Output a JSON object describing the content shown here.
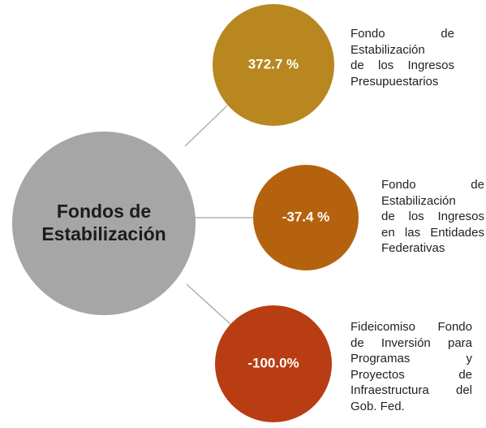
{
  "center": {
    "title_lines": [
      "Fondos de",
      "Estabilización"
    ]
  },
  "nodes": [
    {
      "label": "372.7 %",
      "color": "#b8871f",
      "description_lines": [
        "Fondo de",
        "Estabilización",
        "de los Ingresos",
        "Presupuestarios"
      ]
    },
    {
      "label": "-37.4 %",
      "color": "#b5620f",
      "description_lines": [
        "Fondo de",
        "Estabilización",
        "de los Ingresos",
        "en las Entidades",
        "Federativas"
      ]
    },
    {
      "label": "-100.0%",
      "color": "#b83d12",
      "description_lines": [
        "Fideicomiso Fondo",
        "de Inversión para",
        "Programas y",
        "Proyectos de",
        "Infraestructura del",
        "Gob. Fed."
      ]
    }
  ]
}
